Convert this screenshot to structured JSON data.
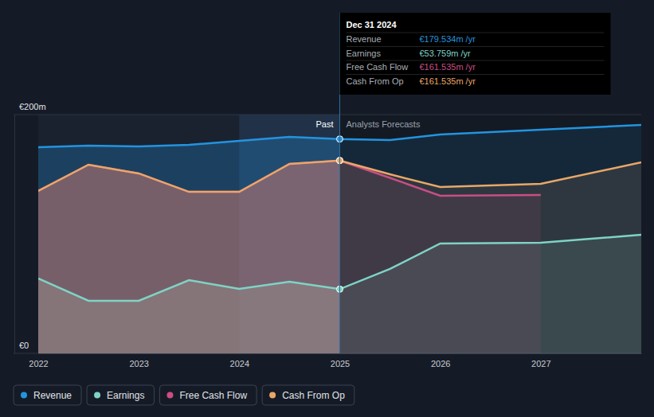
{
  "chart_data": {
    "type": "line",
    "x": [
      2022,
      2022.5,
      2023,
      2023.5,
      2024,
      2024.5,
      2025,
      2025.5,
      2026,
      2027,
      2028
    ],
    "xlim": [
      2022,
      2028
    ],
    "xticks": [
      2022,
      2023,
      2024,
      2025,
      2026,
      2027
    ],
    "ylim": [
      0,
      200
    ],
    "yticks": [
      {
        "value": 0,
        "label": "€0"
      },
      {
        "value": 200,
        "label": "€200m"
      }
    ],
    "grid": true,
    "legend": "bottom",
    "series": [
      {
        "name": "Revenue",
        "color": "#2394df",
        "values": [
          172.7,
          174,
          173.3,
          174.7,
          178,
          181.3,
          179.5,
          178.7,
          183.3,
          187.3,
          191.3
        ]
      },
      {
        "name": "Earnings",
        "color": "#7fd3c5",
        "values": [
          62.7,
          44,
          44,
          61.3,
          54,
          60,
          53.8,
          70.7,
          92,
          92.7,
          99.3
        ]
      },
      {
        "name": "Free Cash Flow",
        "color": "#c94e84",
        "values": [
          136,
          158,
          150.7,
          135.3,
          135.3,
          158.7,
          161.5,
          147,
          132,
          132.7,
          null
        ]
      },
      {
        "name": "Cash From Op",
        "color": "#e9a767",
        "values": [
          136,
          158,
          150.7,
          135.3,
          135.3,
          158.7,
          161.5,
          150,
          139.3,
          142,
          160
        ]
      }
    ],
    "annotations": {
      "past": "Past",
      "forecast": "Analysts Forecasts"
    },
    "forecast_start": 2025,
    "highlight": [
      2024,
      2025
    ],
    "tooltip": {
      "date": "Dec 31 2024",
      "items": [
        {
          "name": "Revenue",
          "value": 179.534,
          "label": "€179.534m /yr"
        },
        {
          "name": "Earnings",
          "value": 53.759,
          "label": "€53.759m /yr"
        },
        {
          "name": "Free Cash Flow",
          "value": 161.535,
          "label": "€161.535m /yr"
        },
        {
          "name": "Cash From Op",
          "value": 161.535,
          "label": "€161.535m /yr"
        }
      ]
    }
  }
}
